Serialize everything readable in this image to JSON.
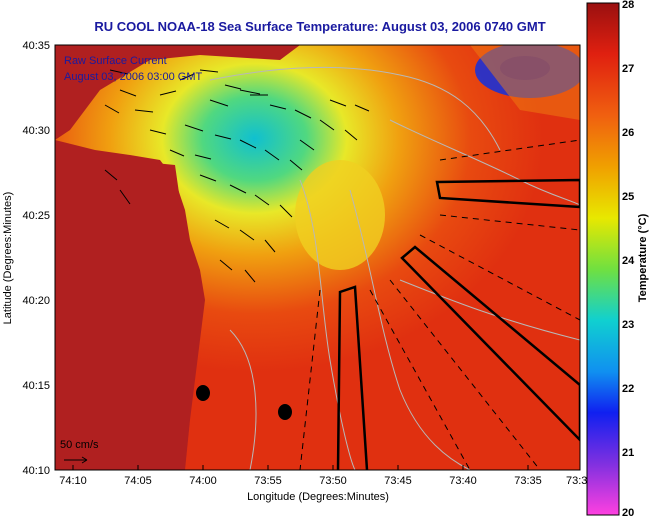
{
  "title": "RU COOL  NOAA-18  Sea Surface Temperature:  August 03, 2006 0740 GMT",
  "inset": {
    "line1": "Raw Surface Current",
    "line2": "August 03, 2006 03:00 GMT"
  },
  "scale": {
    "label": "50 cm/s"
  },
  "axes": {
    "xlabel": "Longitude (Degrees:Minutes)",
    "ylabel": "Latitude (Degrees:Minutes)",
    "x_ticks": [
      "74:10",
      "74:05",
      "74:00",
      "73:55",
      "73:50",
      "73:45",
      "73:40",
      "73:35",
      "73:3"
    ],
    "y_ticks": [
      "40:35",
      "40:30",
      "40:25",
      "40:20",
      "40:15",
      "40:10"
    ]
  },
  "colorbar": {
    "label": "Temperature (°C)",
    "ticks": [
      "28",
      "27",
      "26",
      "25",
      "24",
      "23",
      "22",
      "21",
      "20"
    ],
    "min": 20,
    "max": 28
  },
  "colors": {
    "title": "#1a1aa0",
    "land": "#b02020",
    "ocean_warm": "#e03010",
    "ocean_cool": "#f0e020"
  }
}
